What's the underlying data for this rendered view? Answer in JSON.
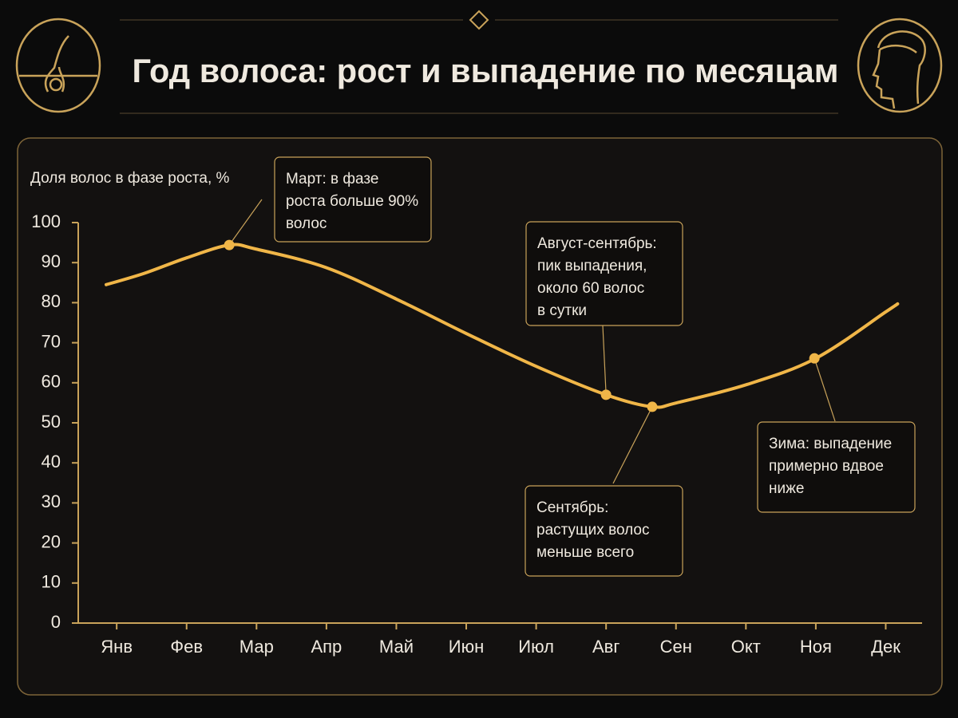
{
  "chart_data": {
    "type": "line",
    "title": "Год волоса: рост и выпадение по месяцам",
    "y_label": "Доля волос в фазе роста, %",
    "x": [
      0.85,
      1.39,
      2,
      2.61,
      2.99,
      3.99,
      5,
      6,
      7,
      8,
      8.66,
      9.01,
      10.02,
      11,
      12,
      12.17
    ],
    "series": [
      {
        "color": "#f0b648",
        "values": [
          84.5,
          87.3,
          91.2,
          94.4,
          93.4,
          88.8,
          80.9,
          72.3,
          64.1,
          57.0,
          54.0,
          55.0,
          59.6,
          66.1,
          77.7,
          79.7
        ]
      }
    ],
    "points": {
      "x": [
        2.61,
        8,
        8.66,
        10.98
      ],
      "y": [
        94.4,
        57.0,
        54.0,
        66.1
      ]
    },
    "annotations": [
      {
        "lines": [
          "Март: в фазе",
          "роста больше 90%",
          "волос"
        ]
      },
      {
        "lines": [
          "Август-сентябрь:",
          "пик выпадения,",
          "около 60 волос",
          "в сутки"
        ]
      },
      {
        "lines": [
          "Сентябрь:",
          "растущих волос",
          "меньше всего"
        ]
      },
      {
        "lines": [
          "Зима: выпадение",
          "примерно вдвое",
          "ниже"
        ]
      }
    ],
    "xlim": [
      0.45,
      12.52
    ],
    "xticks": [
      {
        "value": 1,
        "label": "Янв"
      },
      {
        "value": 2,
        "label": "Фев"
      },
      {
        "value": 3,
        "label": "Мар"
      },
      {
        "value": 4,
        "label": "Апр"
      },
      {
        "value": 5,
        "label": "Май"
      },
      {
        "value": 6,
        "label": "Июн"
      },
      {
        "value": 7,
        "label": "Июл"
      },
      {
        "value": 8,
        "label": "Авг"
      },
      {
        "value": 9,
        "label": "Сен"
      },
      {
        "value": 10,
        "label": "Окт"
      },
      {
        "value": 11,
        "label": "Ноя"
      },
      {
        "value": 12,
        "label": "Дек"
      }
    ],
    "ylim": [
      0,
      100
    ],
    "yticks": [
      0,
      10,
      20,
      30,
      40,
      50,
      60,
      70,
      80,
      90,
      100
    ],
    "grid": false
  }
}
